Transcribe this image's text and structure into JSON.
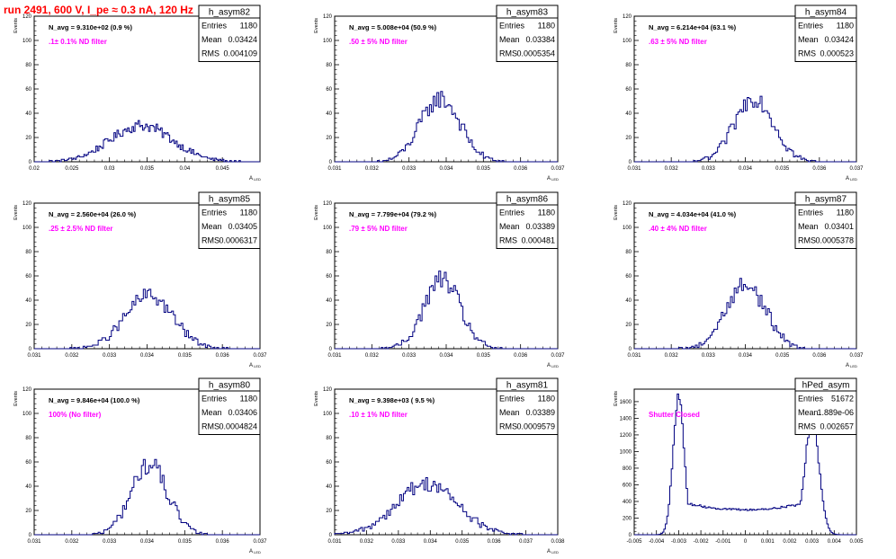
{
  "page": {
    "title": "run 2491,   600 V, I_pe ≈ 0.3 nA, 120 Hz"
  },
  "colors": {
    "histogram_line": "#000080",
    "frame": "#000000",
    "nd_label": "#ff00ff",
    "title": "#ff0000",
    "background": "#ffffff"
  },
  "chart_data": [
    {
      "type": "bar",
      "name": "h_asym82",
      "navg_label": "N_avg = 9.310e+02 (0.9 %)",
      "note": ".1± 0.1% ND filter",
      "stats": [
        [
          "Entries",
          "1180"
        ],
        [
          "Mean",
          "0.03424"
        ],
        [
          "RMS",
          "0.004109"
        ]
      ],
      "xlabel": "A_LED",
      "ylabel": "Events",
      "xlim": [
        0.02,
        0.05
      ],
      "ylim": [
        0,
        120
      ],
      "xticks": [
        0.02,
        0.025,
        0.03,
        0.035,
        0.04,
        0.045
      ],
      "xtick_labels": [
        "0.02",
        "0.025",
        "0.03",
        "0.035",
        "0.04",
        "0.045"
      ],
      "yticks": [
        0,
        20,
        40,
        60,
        80,
        100,
        120
      ],
      "mean": 0.03424,
      "rms": 0.004109,
      "peak": 30,
      "nbins": 150,
      "shape": "gauss"
    },
    {
      "type": "bar",
      "name": "h_asym83",
      "navg_label": "N_avg = 5.008e+04 (50.9 %)",
      "note": ".50 ± 5% ND filter",
      "stats": [
        [
          "Entries",
          "1180"
        ],
        [
          "Mean",
          "0.03384"
        ],
        [
          "RMS",
          "0.0005354"
        ]
      ],
      "xlabel": "A_LED",
      "ylabel": "Events",
      "xlim": [
        0.031,
        0.037
      ],
      "ylim": [
        0,
        120
      ],
      "xticks": [
        0.031,
        0.032,
        0.033,
        0.034,
        0.035,
        0.036,
        0.037
      ],
      "xtick_labels": [
        "0.031",
        "0.032",
        "0.033",
        "0.034",
        "0.035",
        "0.036",
        "0.037"
      ],
      "yticks": [
        0,
        20,
        40,
        60,
        80,
        100,
        120
      ],
      "mean": 0.03384,
      "rms": 0.0005354,
      "peak": 52,
      "nbins": 120,
      "shape": "gauss"
    },
    {
      "type": "bar",
      "name": "h_asym84",
      "navg_label": "N_avg = 6.214e+04 (63.1 %)",
      "note": ".63 ± 5% ND filter",
      "stats": [
        [
          "Entries",
          "1180"
        ],
        [
          "Mean",
          "0.03424"
        ],
        [
          "RMS",
          "0.000523"
        ]
      ],
      "xlabel": "A_LED",
      "ylabel": "Events",
      "xlim": [
        0.031,
        0.037
      ],
      "ylim": [
        0,
        120
      ],
      "xticks": [
        0.031,
        0.032,
        0.033,
        0.034,
        0.035,
        0.036,
        0.037
      ],
      "xtick_labels": [
        "0.031",
        "0.032",
        "0.033",
        "0.034",
        "0.035",
        "0.036",
        "0.037"
      ],
      "yticks": [
        0,
        20,
        40,
        60,
        80,
        100,
        120
      ],
      "mean": 0.03424,
      "rms": 0.000523,
      "peak": 53,
      "nbins": 120,
      "shape": "gauss"
    },
    {
      "type": "bar",
      "name": "h_asym85",
      "navg_label": "N_avg = 2.560e+04 (26.0 %)",
      "note": ".25 ± 2.5% ND filter",
      "stats": [
        [
          "Entries",
          "1180"
        ],
        [
          "Mean",
          "0.03405"
        ],
        [
          "RMS",
          "0.0006317"
        ]
      ],
      "xlabel": "A_LED",
      "ylabel": "Events",
      "xlim": [
        0.031,
        0.037
      ],
      "ylim": [
        0,
        120
      ],
      "xticks": [
        0.031,
        0.032,
        0.033,
        0.034,
        0.035,
        0.036,
        0.037
      ],
      "xtick_labels": [
        "0.031",
        "0.032",
        "0.033",
        "0.034",
        "0.035",
        "0.036",
        "0.037"
      ],
      "yticks": [
        0,
        20,
        40,
        60,
        80,
        100,
        120
      ],
      "mean": 0.03405,
      "rms": 0.0006317,
      "peak": 44,
      "nbins": 120,
      "shape": "gauss"
    },
    {
      "type": "bar",
      "name": "h_asym86",
      "navg_label": "N_avg = 7.799e+04 (79.2 %)",
      "note": ".79 ± 5% ND filter",
      "stats": [
        [
          "Entries",
          "1180"
        ],
        [
          "Mean",
          "0.03389"
        ],
        [
          "RMS",
          "0.000481"
        ]
      ],
      "xlabel": "A_LED",
      "ylabel": "Events",
      "xlim": [
        0.031,
        0.037
      ],
      "ylim": [
        0,
        120
      ],
      "xticks": [
        0.031,
        0.032,
        0.033,
        0.034,
        0.035,
        0.036,
        0.037
      ],
      "xtick_labels": [
        "0.031",
        "0.032",
        "0.033",
        "0.034",
        "0.035",
        "0.036",
        "0.037"
      ],
      "yticks": [
        0,
        20,
        40,
        60,
        80,
        100,
        120
      ],
      "mean": 0.03389,
      "rms": 0.000481,
      "peak": 57,
      "nbins": 120,
      "shape": "gauss"
    },
    {
      "type": "bar",
      "name": "h_asym87",
      "navg_label": "N_avg = 4.034e+04 (41.0 %)",
      "note": ".40 ± 4% ND filter",
      "stats": [
        [
          "Entries",
          "1180"
        ],
        [
          "Mean",
          "0.03401"
        ],
        [
          "RMS",
          "0.0005378"
        ]
      ],
      "xlabel": "A_LED",
      "ylabel": "Events",
      "xlim": [
        0.031,
        0.037
      ],
      "ylim": [
        0,
        120
      ],
      "xticks": [
        0.031,
        0.032,
        0.033,
        0.034,
        0.035,
        0.036,
        0.037
      ],
      "xtick_labels": [
        "0.031",
        "0.032",
        "0.033",
        "0.034",
        "0.035",
        "0.036",
        "0.037"
      ],
      "yticks": [
        0,
        20,
        40,
        60,
        80,
        100,
        120
      ],
      "mean": 0.03401,
      "rms": 0.0005378,
      "peak": 53,
      "nbins": 120,
      "shape": "gauss"
    },
    {
      "type": "bar",
      "name": "h_asym80",
      "navg_label": "N_avg = 9.846e+04 (100.0 %)",
      "note": "100% (No filter)",
      "stats": [
        [
          "Entries",
          "1180"
        ],
        [
          "Mean",
          "0.03406"
        ],
        [
          "RMS",
          "0.0004824"
        ]
      ],
      "xlabel": "A_LED",
      "ylabel": "Events",
      "xlim": [
        0.031,
        0.037
      ],
      "ylim": [
        0,
        120
      ],
      "xticks": [
        0.031,
        0.032,
        0.033,
        0.034,
        0.035,
        0.036,
        0.037
      ],
      "xtick_labels": [
        "0.031",
        "0.032",
        "0.033",
        "0.034",
        "0.035",
        "0.036",
        "0.037"
      ],
      "yticks": [
        0,
        20,
        40,
        60,
        80,
        100,
        120
      ],
      "mean": 0.03406,
      "rms": 0.0004824,
      "peak": 58,
      "nbins": 120,
      "shape": "gauss"
    },
    {
      "type": "bar",
      "name": "h_asym81",
      "navg_label": "N_avg = 9.398e+03 ( 9.5 %)",
      "note": ".10 ± 1% ND filter",
      "stats": [
        [
          "Entries",
          "1180"
        ],
        [
          "Mean",
          "0.03389"
        ],
        [
          "RMS",
          "0.0009579"
        ]
      ],
      "xlabel": "A_LED",
      "ylabel": "Events",
      "xlim": [
        0.031,
        0.038
      ],
      "ylim": [
        0,
        120
      ],
      "xticks": [
        0.031,
        0.032,
        0.033,
        0.034,
        0.035,
        0.036,
        0.037,
        0.038
      ],
      "xtick_labels": [
        "0.031",
        "0.032",
        "0.033",
        "0.034",
        "0.035",
        "0.036",
        "0.037",
        "0.038"
      ],
      "yticks": [
        0,
        20,
        40,
        60,
        80,
        100,
        120
      ],
      "mean": 0.03389,
      "rms": 0.0009579,
      "peak": 42,
      "nbins": 120,
      "shape": "gauss"
    },
    {
      "type": "bar",
      "name": "hPed_asym",
      "navg_label": "",
      "note": "Shutter Closed",
      "stats": [
        [
          "Entries",
          "51672"
        ],
        [
          "Mean",
          "1.889e-06"
        ],
        [
          "RMS",
          "0.002657"
        ]
      ],
      "xlabel": "",
      "ylabel": "Events",
      "xlim": [
        -0.005,
        0.005
      ],
      "ylim": [
        0,
        1750
      ],
      "xticks": [
        -0.005,
        -0.004,
        -0.003,
        -0.002,
        -0.001,
        0,
        0.001,
        0.002,
        0.003,
        0.004,
        0.005
      ],
      "xtick_labels": [
        "-0.005",
        "-0.004",
        "-0.003",
        "-0.002",
        "-0.001",
        "0",
        "0.001",
        "0.002",
        "0.003",
        "0.004",
        "0.005"
      ],
      "yticks": [
        0,
        200,
        400,
        600,
        800,
        1000,
        1200,
        1400,
        1600
      ],
      "mean": 1.889e-06,
      "rms": 0.002657,
      "peak": 1650,
      "nbins": 150,
      "shape": "double-peak",
      "peaks_x": [
        -0.003,
        0.003
      ],
      "valley_value": 300
    }
  ]
}
